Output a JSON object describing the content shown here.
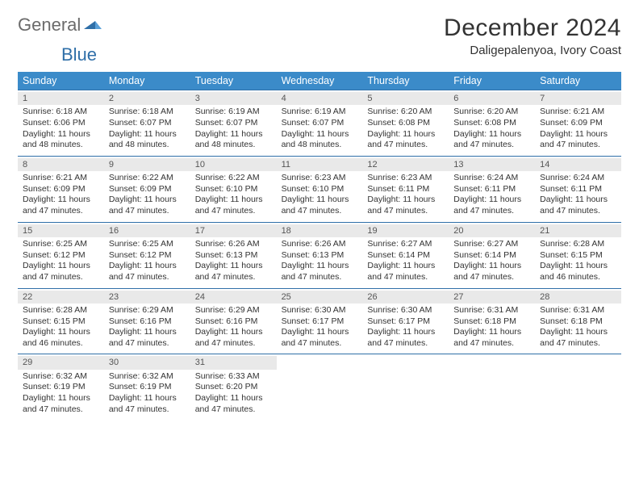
{
  "brand": {
    "general": "General",
    "blue": "Blue",
    "accent": "#2f6fa8",
    "gray": "#6b6b6b"
  },
  "title": "December 2024",
  "location": "Daligepalenyoa, Ivory Coast",
  "colors": {
    "header_bg": "#3b8bc9",
    "header_text": "#ffffff",
    "row_border": "#2f6fa8",
    "daynum_bg": "#e9e9e9",
    "text": "#333333",
    "page_bg": "#ffffff"
  },
  "day_names": [
    "Sunday",
    "Monday",
    "Tuesday",
    "Wednesday",
    "Thursday",
    "Friday",
    "Saturday"
  ],
  "weeks": [
    [
      {
        "n": "1",
        "sr": "Sunrise: 6:18 AM",
        "ss": "Sunset: 6:06 PM",
        "dl": "Daylight: 11 hours and 48 minutes."
      },
      {
        "n": "2",
        "sr": "Sunrise: 6:18 AM",
        "ss": "Sunset: 6:07 PM",
        "dl": "Daylight: 11 hours and 48 minutes."
      },
      {
        "n": "3",
        "sr": "Sunrise: 6:19 AM",
        "ss": "Sunset: 6:07 PM",
        "dl": "Daylight: 11 hours and 48 minutes."
      },
      {
        "n": "4",
        "sr": "Sunrise: 6:19 AM",
        "ss": "Sunset: 6:07 PM",
        "dl": "Daylight: 11 hours and 48 minutes."
      },
      {
        "n": "5",
        "sr": "Sunrise: 6:20 AM",
        "ss": "Sunset: 6:08 PM",
        "dl": "Daylight: 11 hours and 47 minutes."
      },
      {
        "n": "6",
        "sr": "Sunrise: 6:20 AM",
        "ss": "Sunset: 6:08 PM",
        "dl": "Daylight: 11 hours and 47 minutes."
      },
      {
        "n": "7",
        "sr": "Sunrise: 6:21 AM",
        "ss": "Sunset: 6:09 PM",
        "dl": "Daylight: 11 hours and 47 minutes."
      }
    ],
    [
      {
        "n": "8",
        "sr": "Sunrise: 6:21 AM",
        "ss": "Sunset: 6:09 PM",
        "dl": "Daylight: 11 hours and 47 minutes."
      },
      {
        "n": "9",
        "sr": "Sunrise: 6:22 AM",
        "ss": "Sunset: 6:09 PM",
        "dl": "Daylight: 11 hours and 47 minutes."
      },
      {
        "n": "10",
        "sr": "Sunrise: 6:22 AM",
        "ss": "Sunset: 6:10 PM",
        "dl": "Daylight: 11 hours and 47 minutes."
      },
      {
        "n": "11",
        "sr": "Sunrise: 6:23 AM",
        "ss": "Sunset: 6:10 PM",
        "dl": "Daylight: 11 hours and 47 minutes."
      },
      {
        "n": "12",
        "sr": "Sunrise: 6:23 AM",
        "ss": "Sunset: 6:11 PM",
        "dl": "Daylight: 11 hours and 47 minutes."
      },
      {
        "n": "13",
        "sr": "Sunrise: 6:24 AM",
        "ss": "Sunset: 6:11 PM",
        "dl": "Daylight: 11 hours and 47 minutes."
      },
      {
        "n": "14",
        "sr": "Sunrise: 6:24 AM",
        "ss": "Sunset: 6:11 PM",
        "dl": "Daylight: 11 hours and 47 minutes."
      }
    ],
    [
      {
        "n": "15",
        "sr": "Sunrise: 6:25 AM",
        "ss": "Sunset: 6:12 PM",
        "dl": "Daylight: 11 hours and 47 minutes."
      },
      {
        "n": "16",
        "sr": "Sunrise: 6:25 AM",
        "ss": "Sunset: 6:12 PM",
        "dl": "Daylight: 11 hours and 47 minutes."
      },
      {
        "n": "17",
        "sr": "Sunrise: 6:26 AM",
        "ss": "Sunset: 6:13 PM",
        "dl": "Daylight: 11 hours and 47 minutes."
      },
      {
        "n": "18",
        "sr": "Sunrise: 6:26 AM",
        "ss": "Sunset: 6:13 PM",
        "dl": "Daylight: 11 hours and 47 minutes."
      },
      {
        "n": "19",
        "sr": "Sunrise: 6:27 AM",
        "ss": "Sunset: 6:14 PM",
        "dl": "Daylight: 11 hours and 47 minutes."
      },
      {
        "n": "20",
        "sr": "Sunrise: 6:27 AM",
        "ss": "Sunset: 6:14 PM",
        "dl": "Daylight: 11 hours and 47 minutes."
      },
      {
        "n": "21",
        "sr": "Sunrise: 6:28 AM",
        "ss": "Sunset: 6:15 PM",
        "dl": "Daylight: 11 hours and 46 minutes."
      }
    ],
    [
      {
        "n": "22",
        "sr": "Sunrise: 6:28 AM",
        "ss": "Sunset: 6:15 PM",
        "dl": "Daylight: 11 hours and 46 minutes."
      },
      {
        "n": "23",
        "sr": "Sunrise: 6:29 AM",
        "ss": "Sunset: 6:16 PM",
        "dl": "Daylight: 11 hours and 47 minutes."
      },
      {
        "n": "24",
        "sr": "Sunrise: 6:29 AM",
        "ss": "Sunset: 6:16 PM",
        "dl": "Daylight: 11 hours and 47 minutes."
      },
      {
        "n": "25",
        "sr": "Sunrise: 6:30 AM",
        "ss": "Sunset: 6:17 PM",
        "dl": "Daylight: 11 hours and 47 minutes."
      },
      {
        "n": "26",
        "sr": "Sunrise: 6:30 AM",
        "ss": "Sunset: 6:17 PM",
        "dl": "Daylight: 11 hours and 47 minutes."
      },
      {
        "n": "27",
        "sr": "Sunrise: 6:31 AM",
        "ss": "Sunset: 6:18 PM",
        "dl": "Daylight: 11 hours and 47 minutes."
      },
      {
        "n": "28",
        "sr": "Sunrise: 6:31 AM",
        "ss": "Sunset: 6:18 PM",
        "dl": "Daylight: 11 hours and 47 minutes."
      }
    ],
    [
      {
        "n": "29",
        "sr": "Sunrise: 6:32 AM",
        "ss": "Sunset: 6:19 PM",
        "dl": "Daylight: 11 hours and 47 minutes."
      },
      {
        "n": "30",
        "sr": "Sunrise: 6:32 AM",
        "ss": "Sunset: 6:19 PM",
        "dl": "Daylight: 11 hours and 47 minutes."
      },
      {
        "n": "31",
        "sr": "Sunrise: 6:33 AM",
        "ss": "Sunset: 6:20 PM",
        "dl": "Daylight: 11 hours and 47 minutes."
      },
      {
        "empty": true
      },
      {
        "empty": true
      },
      {
        "empty": true
      },
      {
        "empty": true
      }
    ]
  ]
}
